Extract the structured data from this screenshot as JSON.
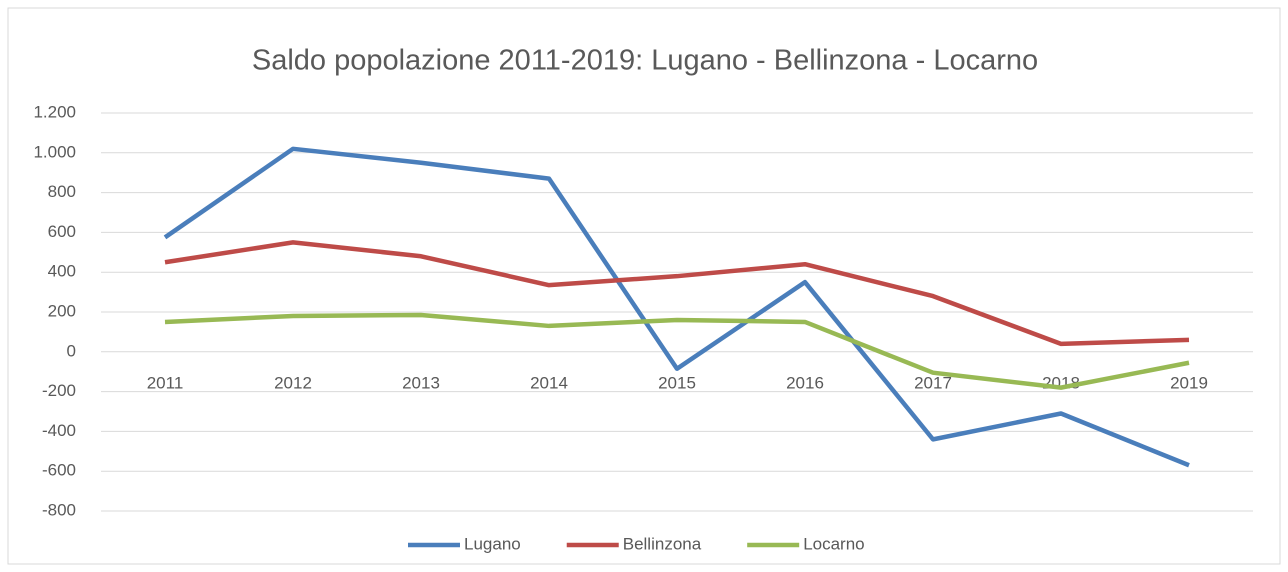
{
  "chart_data": {
    "type": "line",
    "title": "Saldo popolazione 2011-2019: Lugano - Bellinzona - Locarno",
    "categories": [
      "2011",
      "2012",
      "2013",
      "2014",
      "2015",
      "2016",
      "2017",
      "2018",
      "2019"
    ],
    "series": [
      {
        "name": "Lugano",
        "color": "#4a7ebb",
        "values": [
          575,
          1020,
          950,
          870,
          -85,
          350,
          -440,
          -310,
          -570
        ]
      },
      {
        "name": "Bellinzona",
        "color": "#be4b48",
        "values": [
          450,
          550,
          480,
          335,
          380,
          440,
          280,
          40,
          60
        ]
      },
      {
        "name": "Locarno",
        "color": "#98b954",
        "values": [
          150,
          180,
          185,
          130,
          160,
          150,
          -105,
          -180,
          -55
        ]
      }
    ],
    "ylim": [
      -800,
      1200
    ],
    "yticks": [
      -800,
      -600,
      -400,
      -200,
      0,
      200,
      400,
      600,
      800,
      {
        "value": 1000,
        "label": "1.000"
      },
      {
        "value": 1200,
        "label": "1.200"
      }
    ],
    "grid": true,
    "legend": "bottom"
  }
}
